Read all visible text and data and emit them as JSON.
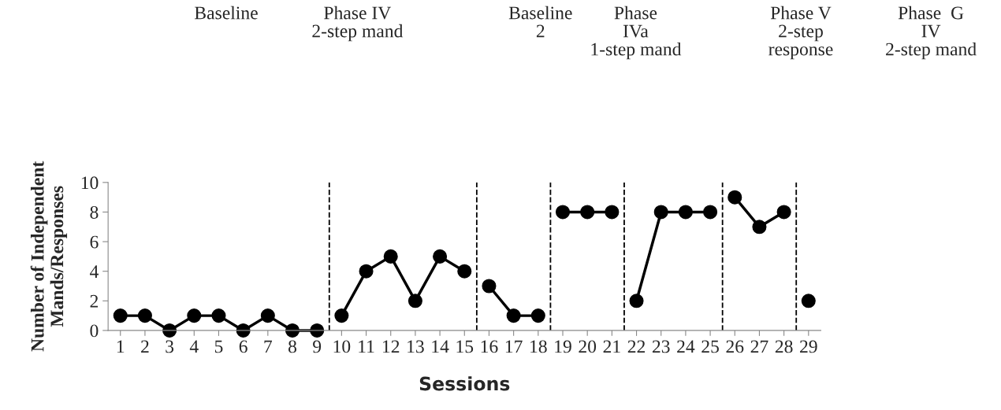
{
  "chart_data": {
    "type": "line",
    "xlabel": "Sessions",
    "ylabel": "Number of Independent\nMands/Responses",
    "xlim": [
      0.5,
      29.5
    ],
    "xticks": [
      1,
      2,
      3,
      4,
      5,
      6,
      7,
      8,
      9,
      10,
      11,
      12,
      13,
      14,
      15,
      16,
      17,
      18,
      19,
      20,
      21,
      22,
      23,
      24,
      25,
      26,
      27,
      28,
      29
    ],
    "ylim": [
      0,
      10
    ],
    "yticks": [
      0,
      2,
      4,
      6,
      8,
      10
    ],
    "marker": "circle",
    "line_style": "solid",
    "grid": false,
    "legend": false,
    "series": [
      {
        "color": "#000000",
        "x": [
          1,
          2,
          3,
          4,
          5,
          6,
          7,
          8,
          9
        ],
        "values": [
          1,
          1,
          0,
          1,
          1,
          0,
          1,
          0,
          0
        ]
      },
      {
        "color": "#000000",
        "x": [
          10,
          11,
          12,
          13,
          14,
          15
        ],
        "values": [
          1,
          4,
          5,
          2,
          5,
          4
        ]
      },
      {
        "color": "#000000",
        "x": [
          16,
          17,
          18
        ],
        "values": [
          3,
          1,
          1
        ]
      },
      {
        "color": "#000000",
        "x": [
          19,
          20,
          21
        ],
        "values": [
          8,
          8,
          8
        ]
      },
      {
        "color": "#000000",
        "x": [
          22,
          23,
          24,
          25
        ],
        "values": [
          2,
          8,
          8,
          8
        ]
      },
      {
        "color": "#000000",
        "x": [
          26,
          27,
          28
        ],
        "values": [
          9,
          7,
          8
        ]
      },
      {
        "color": "#000000",
        "x": [
          29
        ],
        "values": [
          2
        ]
      }
    ],
    "ref_lines": [
      {
        "axis": "x",
        "value": 9.5,
        "line_style": "dashed",
        "color": "#000000"
      },
      {
        "axis": "x",
        "value": 15.5,
        "line_style": "dashed",
        "color": "#000000"
      },
      {
        "axis": "x",
        "value": 18.5,
        "line_style": "dashed",
        "color": "#000000"
      },
      {
        "axis": "x",
        "value": 21.5,
        "line_style": "dashed",
        "color": "#000000"
      },
      {
        "axis": "x",
        "value": 25.5,
        "line_style": "dashed",
        "color": "#000000"
      },
      {
        "axis": "x",
        "value": 28.5,
        "line_style": "dashed",
        "color": "#000000"
      }
    ],
    "annotations": [
      "Baseline",
      "Phase IV\n2-step mand",
      "Baseline\n2",
      "Phase\nIVa\n1-step mand",
      "Phase V\n2-step\nresponse",
      "Phase  G\nIV\n2-step mand"
    ]
  }
}
